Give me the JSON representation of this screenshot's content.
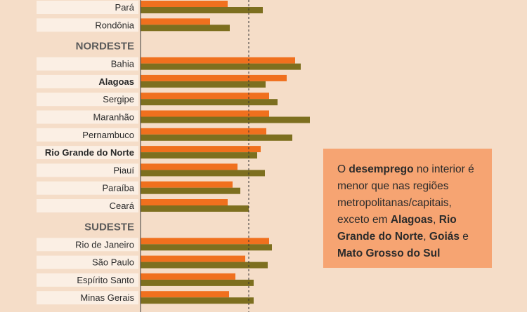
{
  "chart_data": {
    "type": "bar",
    "orientation": "horizontal",
    "series": [
      {
        "color": "#f0701e"
      },
      {
        "color": "#7d6f1f"
      }
    ],
    "groups": [
      {
        "name": "",
        "rows": [
          {
            "label": "Pará",
            "bold": false,
            "values": [
              124,
              174
            ]
          },
          {
            "label": "Rondônia",
            "bold": false,
            "values": [
              99,
              127
            ]
          }
        ]
      },
      {
        "name": "NORDESTE",
        "rows": [
          {
            "label": "Bahia",
            "bold": false,
            "values": [
              220,
              228
            ]
          },
          {
            "label": "Alagoas",
            "bold": true,
            "values": [
              208,
              178
            ]
          },
          {
            "label": "Sergipe",
            "bold": false,
            "values": [
              183,
              195
            ]
          },
          {
            "label": "Maranhão",
            "bold": false,
            "values": [
              183,
              241
            ]
          },
          {
            "label": "Pernambuco",
            "bold": false,
            "values": [
              179,
              216
            ]
          },
          {
            "label": "Rio Grande do Norte",
            "bold": true,
            "values": [
              171,
              166
            ]
          },
          {
            "label": "Piauí",
            "bold": false,
            "values": [
              138,
              177
            ]
          },
          {
            "label": "Paraíba",
            "bold": false,
            "values": [
              131,
              142
            ]
          },
          {
            "label": "Ceará",
            "bold": false,
            "values": [
              124,
              154
            ]
          }
        ]
      },
      {
        "name": "SUDESTE",
        "rows": [
          {
            "label": "Rio de Janeiro",
            "bold": false,
            "values": [
              183,
              187
            ]
          },
          {
            "label": "São Paulo",
            "bold": false,
            "values": [
              149,
              181
            ]
          },
          {
            "label": "Espírito Santo",
            "bold": false,
            "values": [
              135,
              161
            ]
          },
          {
            "label": "Minas Gerais",
            "bold": false,
            "values": [
              126,
              161
            ]
          }
        ]
      }
    ],
    "reference_value": 154,
    "colors": {
      "background": "#f5ddc8",
      "label_box": "#fbefe4",
      "callout": "#f6a472"
    }
  },
  "callout": [
    {
      "t": "O ",
      "b": false
    },
    {
      "t": "desemprego",
      "b": true
    },
    {
      "t": " no interior é menor que nas regiões metropolitanas/capitais, exceto em ",
      "b": false
    },
    {
      "t": "Alagoas",
      "b": true
    },
    {
      "t": ", ",
      "b": false
    },
    {
      "t": "Rio Grande do Norte",
      "b": true
    },
    {
      "t": ", ",
      "b": false
    },
    {
      "t": "Goiás",
      "b": true
    },
    {
      "t": " e ",
      "b": false
    },
    {
      "t": "Mato Grosso do Sul",
      "b": true
    }
  ]
}
